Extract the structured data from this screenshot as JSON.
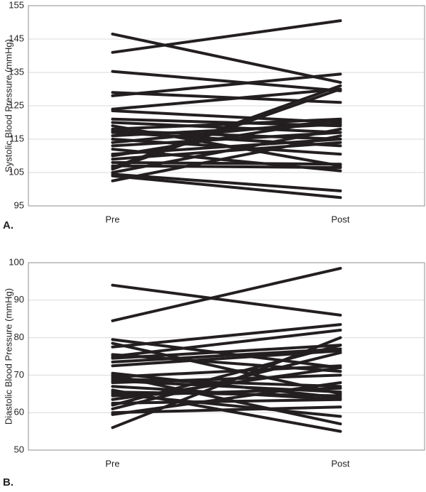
{
  "chart_data": [
    {
      "type": "line",
      "panel_label": "A.",
      "y_label": "Systolic Blood Pressure (mmHg)",
      "categories": [
        "Pre",
        "Post"
      ],
      "ylim": [
        95,
        155
      ],
      "yticks": [
        95,
        105,
        115,
        125,
        135,
        145,
        155
      ],
      "grid": true,
      "series": [
        {
          "color": "#231f20",
          "values": [
            146.5,
            132
          ]
        },
        {
          "color": "#231f20",
          "values": [
            141,
            150.5
          ]
        },
        {
          "color": "#231f20",
          "values": [
            135.3,
            129.5
          ]
        },
        {
          "color": "#231f20",
          "values": [
            129,
            126
          ]
        },
        {
          "color": "#231f20",
          "values": [
            128,
            134.5
          ]
        },
        {
          "color": "#231f20",
          "values": [
            124,
            130
          ]
        },
        {
          "color": "#231f20",
          "values": [
            123.5,
            120
          ]
        },
        {
          "color": "#231f20",
          "values": [
            121,
            119
          ]
        },
        {
          "color": "#231f20",
          "values": [
            120,
            117
          ]
        },
        {
          "color": "#231f20",
          "values": [
            119,
            107
          ]
        },
        {
          "color": "#231f20",
          "values": [
            118,
            121
          ]
        },
        {
          "color": "#231f20",
          "values": [
            117.5,
            115
          ]
        },
        {
          "color": "#231f20",
          "values": [
            117,
            113
          ]
        },
        {
          "color": "#231f20",
          "values": [
            116,
            119.5
          ]
        },
        {
          "color": "#231f20",
          "values": [
            115,
            110.5
          ]
        },
        {
          "color": "#231f20",
          "values": [
            114,
            120.5
          ]
        },
        {
          "color": "#231f20",
          "values": [
            113,
            117
          ]
        },
        {
          "color": "#231f20",
          "values": [
            112,
            105.5
          ]
        },
        {
          "color": "#231f20",
          "values": [
            110.5,
            115
          ]
        },
        {
          "color": "#231f20",
          "values": [
            110,
            121
          ]
        },
        {
          "color": "#231f20",
          "values": [
            109,
            114
          ]
        },
        {
          "color": "#231f20",
          "values": [
            108,
            107.5
          ]
        },
        {
          "color": "#231f20",
          "values": [
            107,
            106.5
          ]
        },
        {
          "color": "#231f20",
          "values": [
            106.5,
            131
          ]
        },
        {
          "color": "#231f20",
          "values": [
            106,
            130
          ]
        },
        {
          "color": "#231f20",
          "values": [
            105,
            118
          ]
        },
        {
          "color": "#231f20",
          "values": [
            104.5,
            99.5
          ]
        },
        {
          "color": "#231f20",
          "values": [
            102.5,
            116
          ]
        },
        {
          "color": "#231f20",
          "values": [
            104,
            97.5
          ]
        }
      ]
    },
    {
      "type": "line",
      "panel_label": "B.",
      "y_label": "Diastolic Blood Pressure (mmHg)",
      "categories": [
        "Pre",
        "Post"
      ],
      "ylim": [
        50,
        100
      ],
      "yticks": [
        50,
        60,
        70,
        80,
        90,
        100
      ],
      "grid": true,
      "series": [
        {
          "color": "#231f20",
          "values": [
            94,
            86
          ]
        },
        {
          "color": "#231f20",
          "values": [
            84.5,
            98.5
          ]
        },
        {
          "color": "#231f20",
          "values": [
            79.5,
            72
          ]
        },
        {
          "color": "#231f20",
          "values": [
            78.5,
            65
          ]
        },
        {
          "color": "#231f20",
          "values": [
            77.5,
            83.5
          ]
        },
        {
          "color": "#231f20",
          "values": [
            75.5,
            71
          ]
        },
        {
          "color": "#231f20",
          "values": [
            75,
            82
          ]
        },
        {
          "color": "#231f20",
          "values": [
            74.5,
            78
          ]
        },
        {
          "color": "#231f20",
          "values": [
            73.5,
            77
          ]
        },
        {
          "color": "#231f20",
          "values": [
            72.5,
            76.5
          ]
        },
        {
          "color": "#231f20",
          "values": [
            70.5,
            64
          ]
        },
        {
          "color": "#231f20",
          "values": [
            70,
            57
          ]
        },
        {
          "color": "#231f20",
          "values": [
            69.5,
            72.5
          ]
        },
        {
          "color": "#231f20",
          "values": [
            69,
            67
          ]
        },
        {
          "color": "#231f20",
          "values": [
            68.5,
            65.5
          ]
        },
        {
          "color": "#231f20",
          "values": [
            68,
            70
          ]
        },
        {
          "color": "#231f20",
          "values": [
            67,
            63.5
          ]
        },
        {
          "color": "#231f20",
          "values": [
            66,
            55
          ]
        },
        {
          "color": "#231f20",
          "values": [
            65.5,
            64.5
          ]
        },
        {
          "color": "#231f20",
          "values": [
            65,
            59
          ]
        },
        {
          "color": "#231f20",
          "values": [
            64.5,
            66.5
          ]
        },
        {
          "color": "#231f20",
          "values": [
            63.5,
            72
          ]
        },
        {
          "color": "#231f20",
          "values": [
            62.5,
            63.5
          ]
        },
        {
          "color": "#231f20",
          "values": [
            62,
            78
          ]
        },
        {
          "color": "#231f20",
          "values": [
            61,
            76
          ]
        },
        {
          "color": "#231f20",
          "values": [
            60,
            61.5
          ]
        },
        {
          "color": "#231f20",
          "values": [
            59.5,
            68
          ]
        },
        {
          "color": "#231f20",
          "values": [
            56,
            80
          ]
        }
      ]
    }
  ]
}
